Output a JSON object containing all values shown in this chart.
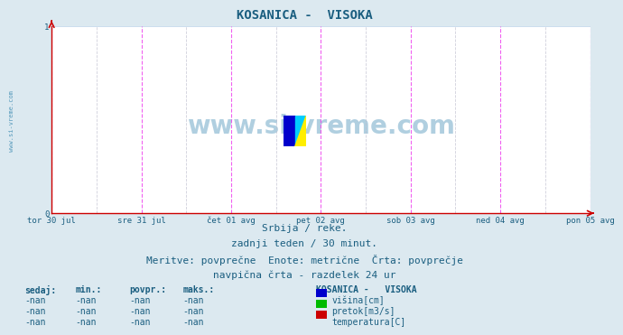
{
  "title": "KOSANICA -  VISOKA",
  "title_color": "#1a5e80",
  "title_fontsize": 10,
  "bg_color": "#dce9f0",
  "plot_bg_color": "#ffffff",
  "watermark": "www.si-vreme.com",
  "watermark_color": "#b0cfe0",
  "watermark_fontsize": 20,
  "xlabel_color": "#1a5e80",
  "ylabel_color": "#1a5e80",
  "ylim": [
    0,
    1
  ],
  "yticks": [
    0,
    1
  ],
  "ytick_labels": [
    "0",
    "1"
  ],
  "xtick_labels": [
    "tor 30 jul",
    "sre 31 jul",
    "čet 01 avg",
    "pet 02 avg",
    "sob 03 avg",
    "ned 04 avg",
    "pon 05 avg"
  ],
  "xtick_positions": [
    0.0,
    0.1667,
    0.3333,
    0.5,
    0.6667,
    0.8333,
    1.0
  ],
  "grid_color": "#ccddee",
  "vline_color_major": "#ee44ee",
  "vline_color_minor": "#bbbbcc",
  "axis_color": "#cc0000",
  "subtitle1": "Srbija / reke.",
  "subtitle2": "zadnji teden / 30 minut.",
  "subtitle3": "Meritve: povprečne  Enote: metrične  Črta: povprečje",
  "subtitle4": "navpična črta - razdelek 24 ur",
  "subtitle_color": "#1a5e80",
  "subtitle_fontsize": 8,
  "table_header": [
    "sedaj:",
    "min.:",
    "povpr.:",
    "maks.:"
  ],
  "table_rows": [
    [
      "-nan",
      "-nan",
      "-nan",
      "-nan"
    ],
    [
      "-nan",
      "-nan",
      "-nan",
      "-nan"
    ],
    [
      "-nan",
      "-nan",
      "-nan",
      "-nan"
    ]
  ],
  "legend_title": "KOSANICA -   VISOKA",
  "legend_items": [
    {
      "label": "višina[cm]",
      "color": "#0000cc"
    },
    {
      "label": "pretok[m3/s]",
      "color": "#00bb00"
    },
    {
      "label": "temperatura[C]",
      "color": "#cc0000"
    }
  ],
  "table_color": "#1a5e80",
  "side_watermark": "www.si-vreme.com",
  "side_watermark_color": "#5599bb"
}
